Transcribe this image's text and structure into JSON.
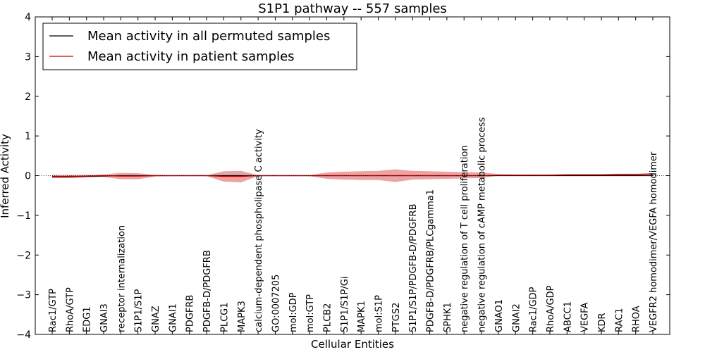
{
  "chart_data": {
    "type": "line",
    "title": "S1P1 pathway -- 557 samples",
    "xlabel": "Cellular Entities",
    "ylabel": "Inferred Activity",
    "ylim": [
      -4,
      4
    ],
    "yticks": [
      "4",
      "3",
      "2",
      "1",
      "0",
      "−1",
      "−2",
      "−3",
      "−4"
    ],
    "ytick_values": [
      4,
      3,
      2,
      1,
      0,
      -1,
      -2,
      -3,
      -4
    ],
    "categories": [
      "Rac1/GTP",
      "RhoA/GTP",
      "EDG1",
      "GNAI3",
      "receptor internalization",
      "S1P1/S1P",
      "GNAZ",
      "GNAI1",
      "PDGFRB",
      "PDGFB-D/PDGFRB",
      "PLCG1",
      "MAPK3",
      "calcium-dependent phospholipase C activity",
      "GO:0007205",
      "mol:GDP",
      "mol:GTP",
      "PLCB2",
      "S1P1/S1P/Gi",
      "MAPK1",
      "mol:S1P",
      "PTGS2",
      "S1P1/S1P/PDGFB-D/PDGFRB",
      "PDGFB-D/PDGFRB/PLCgamma1",
      "SPHK1",
      "negative regulation of T cell proliferation",
      "negative regulation of cAMP metabolic process",
      "GNAO1",
      "GNAI2",
      "Rac1/GDP",
      "RhoA/GDP",
      "ABCC1",
      "VEGFA",
      "KDR",
      "RAC1",
      "RHOA",
      "VEGFR2 homodimer/VEGFA homodimer"
    ],
    "series": [
      {
        "name": "Mean activity in all permuted samples",
        "color": "#000000",
        "style": "line",
        "values": [
          -0.03,
          -0.03,
          -0.02,
          -0.01,
          0,
          0,
          0,
          0,
          0,
          0,
          0,
          0,
          0,
          0,
          0,
          0,
          0,
          0,
          0,
          0,
          0,
          0,
          0,
          0,
          0,
          0,
          0,
          0,
          0,
          0,
          0,
          0,
          0,
          0,
          0,
          0
        ]
      },
      {
        "name": "Mean activity in patient samples",
        "color": "#cc0000",
        "style": "line",
        "values": [
          -0.02,
          -0.02,
          -0.01,
          0,
          -0.01,
          -0.01,
          0,
          0,
          0,
          0,
          -0.02,
          -0.02,
          0,
          0,
          0,
          0,
          0,
          0,
          0,
          0,
          0,
          0,
          0,
          0,
          0,
          0,
          0.01,
          0.01,
          0.01,
          0.01,
          0.02,
          0.02,
          0.02,
          0.03,
          0.03,
          0.04
        ],
        "band_upper": [
          0.02,
          0.02,
          0.02,
          0.03,
          0.07,
          0.06,
          0.02,
          0.01,
          0.01,
          0.01,
          0.11,
          0.12,
          0.01,
          0.01,
          0.01,
          0.01,
          0.08,
          0.1,
          0.11,
          0.12,
          0.16,
          0.12,
          0.11,
          0.1,
          0.09,
          0.08,
          0.04,
          0.03,
          0.03,
          0.03,
          0.04,
          0.04,
          0.04,
          0.05,
          0.05,
          0.06
        ],
        "band_lower": [
          -0.06,
          -0.06,
          -0.04,
          -0.03,
          -0.09,
          -0.09,
          -0.02,
          -0.01,
          -0.01,
          -0.01,
          -0.15,
          -0.17,
          -0.01,
          -0.01,
          -0.01,
          -0.01,
          -0.08,
          -0.1,
          -0.11,
          -0.11,
          -0.16,
          -0.1,
          -0.09,
          -0.08,
          -0.07,
          -0.06,
          0,
          0,
          0,
          0,
          0,
          0,
          0,
          0.01,
          0.01,
          0.02
        ],
        "band_color": "#e06666"
      }
    ],
    "legend_position": "top-left"
  }
}
